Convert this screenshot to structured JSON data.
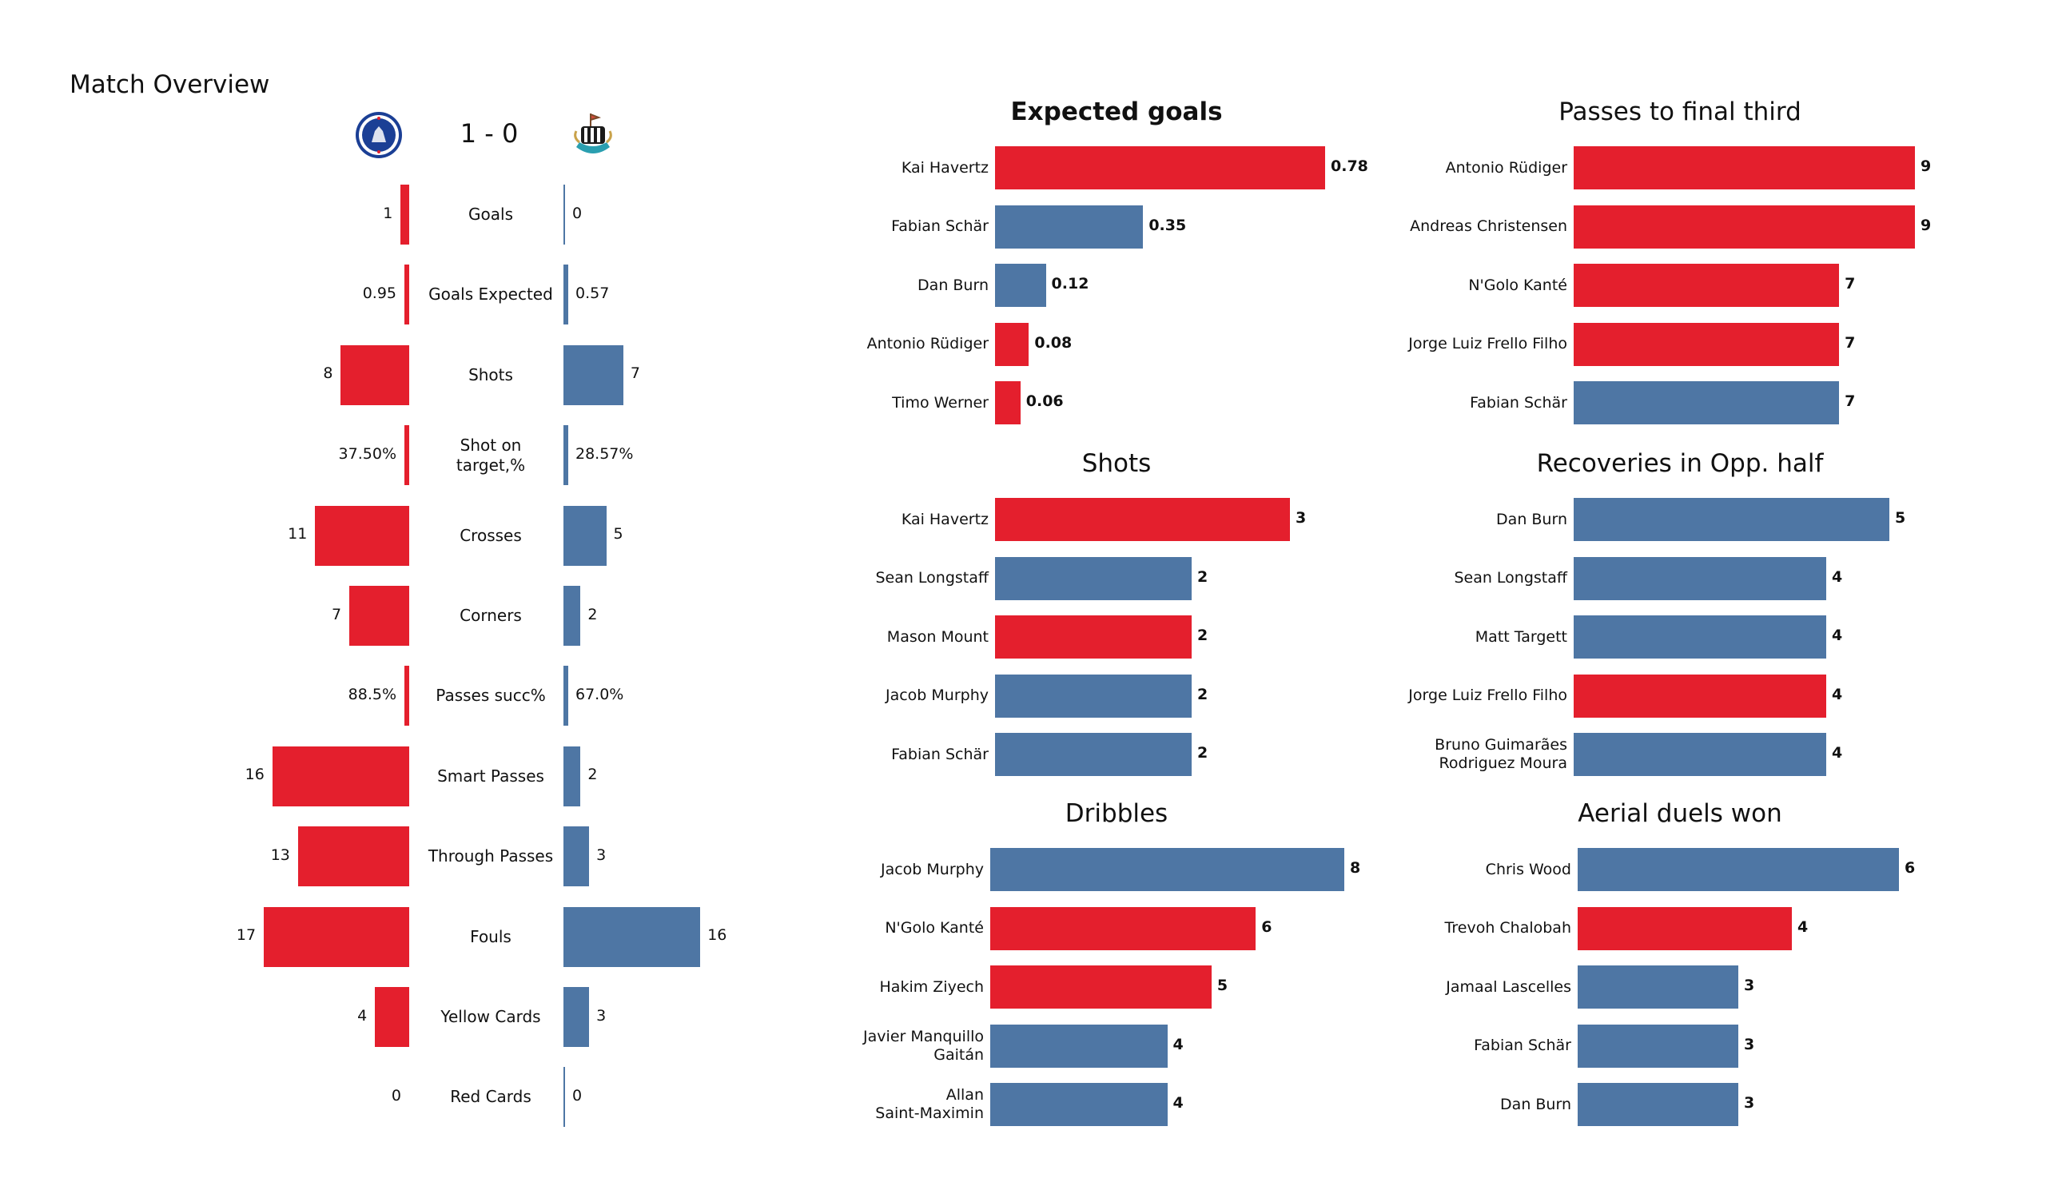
{
  "title": "Match Overview",
  "match": {
    "home_team": "Chelsea",
    "away_team": "Newcastle United",
    "score": "1 - 0",
    "home_crest": "chelsea-crest-icon",
    "away_crest": "newcastle-crest-icon"
  },
  "colors": {
    "home": "#e41f2d",
    "away": "#4e76a4"
  },
  "chart_data": [
    {
      "type": "bar",
      "title": "Match Overview",
      "orientation": "diverging-horizontal",
      "categories": [
        "Goals",
        "Goals Expected",
        "Shots",
        "Shot on target,%",
        "Crosses",
        "Corners",
        "Passes succ%",
        "Smart Passes",
        "Through Passes",
        "Fouls",
        "Yellow Cards",
        "Red Cards"
      ],
      "category_display": [
        "Goals",
        "Goals Expected",
        "Shots",
        "Shot on\ntarget,%",
        "Crosses",
        "Corners",
        "Passes succ%",
        "Smart Passes",
        "Through Passes",
        "Fouls",
        "Yellow Cards",
        "Red Cards"
      ],
      "series": [
        {
          "name": "Chelsea",
          "side": "left",
          "values": [
            1,
            0.95,
            8,
            37.5,
            11,
            7,
            88.5,
            16,
            13,
            17,
            4,
            0
          ],
          "labels": [
            "1",
            "0.95",
            "8",
            "37.50%",
            "11",
            "7",
            "88.5%",
            "16",
            "13",
            "17",
            "4",
            "0"
          ],
          "bar_scaled": [
            true,
            false,
            true,
            false,
            true,
            true,
            false,
            true,
            true,
            true,
            true,
            true
          ]
        },
        {
          "name": "Newcastle United",
          "side": "right",
          "values": [
            0,
            0.57,
            7,
            28.57,
            5,
            2,
            67.0,
            2,
            3,
            16,
            3,
            0
          ],
          "labels": [
            "0",
            "0.57",
            "7",
            "28.57%",
            "5",
            "2",
            "67.0%",
            "2",
            "3",
            "16",
            "3",
            "0"
          ],
          "bar_scaled": [
            true,
            false,
            true,
            false,
            true,
            true,
            false,
            true,
            true,
            true,
            true,
            true
          ]
        }
      ]
    },
    {
      "type": "bar",
      "orientation": "horizontal",
      "title": "Expected goals",
      "title_bold": true,
      "categories": [
        "Kai Havertz",
        "Fabian Schär",
        "Dan Burn",
        "Antonio Rüdiger",
        "Timo Werner"
      ],
      "values": [
        0.78,
        0.35,
        0.12,
        0.08,
        0.06
      ],
      "labels": [
        "0.78",
        "0.35",
        "0.12",
        "0.08",
        "0.06"
      ],
      "teams": [
        "home",
        "away",
        "away",
        "home",
        "home"
      ],
      "xlim": [
        0,
        0.78
      ]
    },
    {
      "type": "bar",
      "orientation": "horizontal",
      "title": "Passes to final third",
      "title_bold": false,
      "categories": [
        "Antonio Rüdiger",
        "Andreas Christensen",
        "N'Golo Kanté",
        "Jorge Luiz Frello Filho",
        "Fabian Schär"
      ],
      "values": [
        9,
        9,
        7,
        7,
        7
      ],
      "labels": [
        "9",
        "9",
        "7",
        "7",
        "7"
      ],
      "teams": [
        "home",
        "home",
        "home",
        "home",
        "away"
      ],
      "xlim": [
        0,
        9
      ]
    },
    {
      "type": "bar",
      "orientation": "horizontal",
      "title": "Shots",
      "title_bold": false,
      "categories": [
        "Kai Havertz",
        "Sean Longstaff",
        "Mason Mount",
        "Jacob Murphy",
        "Fabian Schär"
      ],
      "values": [
        3,
        2,
        2,
        2,
        2
      ],
      "labels": [
        "3",
        "2",
        "2",
        "2",
        "2"
      ],
      "teams": [
        "home",
        "away",
        "home",
        "away",
        "away"
      ],
      "xlim": [
        0,
        3
      ]
    },
    {
      "type": "bar",
      "orientation": "horizontal",
      "title": "Recoveries in Opp. half",
      "title_bold": false,
      "categories": [
        "Dan Burn",
        "Sean Longstaff",
        "Matt Targett",
        "Jorge Luiz Frello Filho",
        "Bruno Guimarães\nRodriguez Moura"
      ],
      "values": [
        5,
        4,
        4,
        4,
        4
      ],
      "labels": [
        "5",
        "4",
        "4",
        "4",
        "4"
      ],
      "teams": [
        "away",
        "away",
        "away",
        "home",
        "away"
      ],
      "xlim": [
        0,
        5
      ]
    },
    {
      "type": "bar",
      "orientation": "horizontal",
      "title": "Dribbles",
      "title_bold": false,
      "categories": [
        "Jacob Murphy",
        "N'Golo Kanté",
        "Hakim Ziyech",
        "Javier Manquillo\nGaitán",
        "Allan\nSaint-Maximin"
      ],
      "values": [
        8,
        6,
        5,
        4,
        4
      ],
      "labels": [
        "8",
        "6",
        "5",
        "4",
        "4"
      ],
      "teams": [
        "away",
        "home",
        "home",
        "away",
        "away"
      ],
      "xlim": [
        0,
        8
      ]
    },
    {
      "type": "bar",
      "orientation": "horizontal",
      "title": "Aerial duels won",
      "title_bold": false,
      "categories": [
        "Chris Wood",
        "Trevoh Chalobah",
        "Jamaal Lascelles",
        "Fabian Schär",
        "Dan Burn"
      ],
      "values": [
        6,
        4,
        3,
        3,
        3
      ],
      "labels": [
        "6",
        "4",
        "3",
        "3",
        "3"
      ],
      "teams": [
        "away",
        "home",
        "away",
        "away",
        "away"
      ],
      "xlim": [
        0,
        6
      ]
    }
  ]
}
